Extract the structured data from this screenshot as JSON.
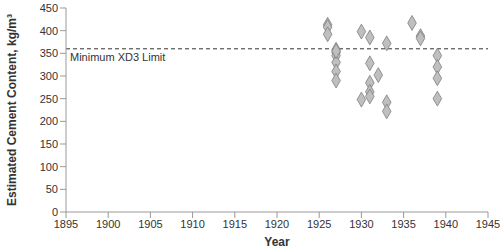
{
  "chart_data": {
    "type": "scatter",
    "x_label": "Year",
    "y_label": "Estimated Cement Content, kg/m³",
    "series": [
      {
        "name": "Estimated cement content",
        "color": "#bfbfbf",
        "marker": "diamond",
        "x": [
          1926,
          1926,
          1926,
          1927,
          1927,
          1927,
          1927,
          1927,
          1927,
          1927,
          1930,
          1930,
          1931,
          1931,
          1931,
          1931,
          1931,
          1932,
          1933,
          1933,
          1933,
          1936,
          1937,
          1937,
          1939,
          1939,
          1939,
          1939
        ],
        "values": [
          413,
          408,
          392,
          358,
          352,
          345,
          330,
          310,
          290,
          355,
          398,
          248,
          385,
          328,
          285,
          265,
          255,
          302,
          372,
          242,
          222,
          417,
          388,
          383,
          345,
          320,
          295,
          250
        ]
      }
    ],
    "xlim": [
      1895,
      1945
    ],
    "xticks": [
      1895,
      1900,
      1905,
      1910,
      1915,
      1920,
      1925,
      1930,
      1935,
      1940,
      1945
    ],
    "ylim": [
      0,
      450
    ],
    "yticks": [
      0,
      50,
      100,
      150,
      200,
      250,
      300,
      350,
      400,
      450
    ],
    "grid": false,
    "annotations": [
      {
        "text": "Minimum XD3 Limit",
        "y": 360,
        "line_style": "dashed"
      }
    ]
  }
}
